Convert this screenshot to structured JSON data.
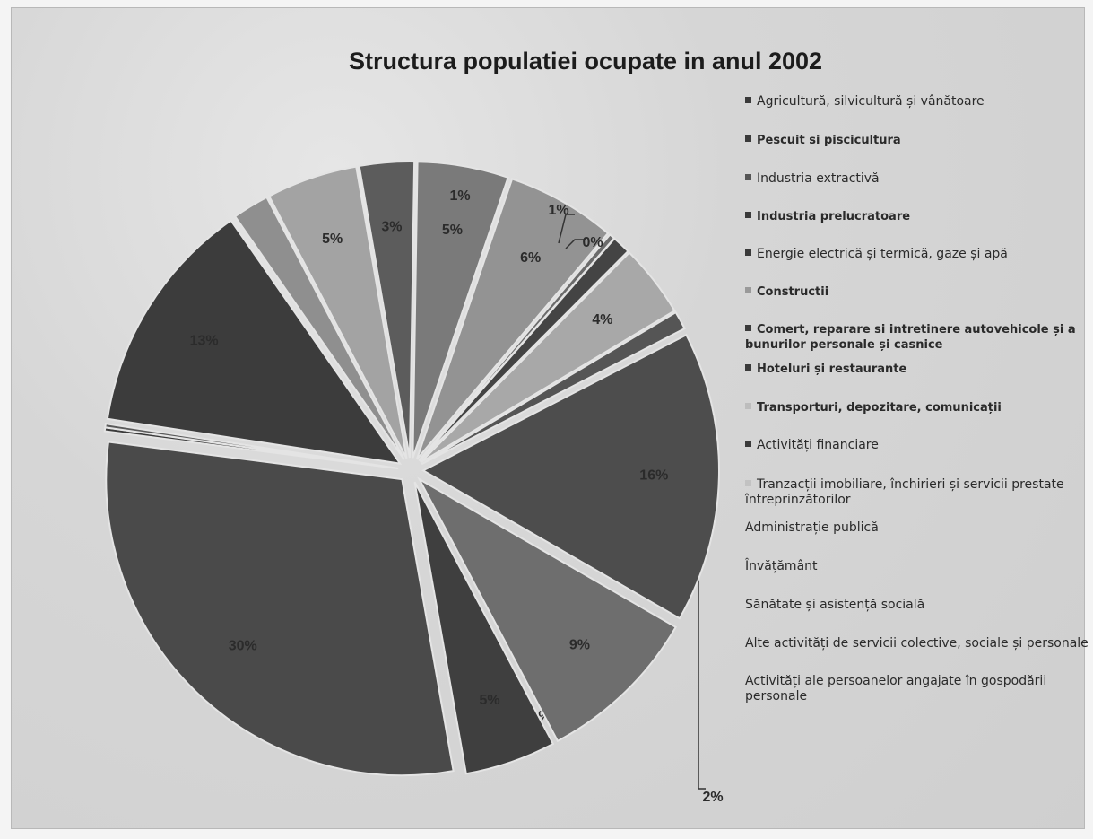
{
  "chart_data": {
    "type": "pie",
    "title": "Structura populatiei ocupate in anul 2002",
    "slices": [
      {
        "label": "Agricultură, silvicultură și vânătoare",
        "value": 30,
        "display": "30%",
        "color": "#4a4a4a"
      },
      {
        "label": "Pescuit și piscicultura",
        "value": 0.2,
        "display": "0%",
        "color": "#3a3a3a"
      },
      {
        "label": "Industria extractivă",
        "value": 0.2,
        "display": "0%",
        "color": "#5a5a5a"
      },
      {
        "label": "Industria prelucratoare",
        "value": 13,
        "display": "13%",
        "color": "#3c3c3c"
      },
      {
        "label": "Energie electrică și termică, gaze și apă",
        "value": 2,
        "display": "2%",
        "color": "#8f8f8f"
      },
      {
        "label": "Constructii",
        "value": 5,
        "display": "5%",
        "color": "#a3a3a3"
      },
      {
        "label": "Comert, reparare si intretinere autovehicole și a bunurilor personale și casnice",
        "value": 3,
        "display": "3%",
        "color": "#5c5c5c"
      },
      {
        "label": "Hoteluri și restaurante",
        "value": 5,
        "display": "5%",
        "color": "#7a7a7a"
      },
      {
        "label": "Transporturi, depozitare, comunicații",
        "value": 6,
        "display": "6%",
        "color": "#939393"
      },
      {
        "label": "Activități financiare",
        "value": 0.3,
        "display": "0%",
        "color": "#6b6b6b"
      },
      {
        "label": "Tranzacții imobiliare, închirieri și servicii prestate întreprinzătorilor",
        "value": 1,
        "display": "1%",
        "color": "#444444"
      },
      {
        "label": "Administrație publică",
        "value": 4,
        "display": "4%",
        "color": "#a8a8a8"
      },
      {
        "label": "Învățământ",
        "value": 1,
        "display": "1%",
        "color": "#555555"
      },
      {
        "label": "Sănătate și asistență socială",
        "value": 16,
        "display": "16%",
        "color": "#4d4d4d"
      },
      {
        "label": "Alte activități de servicii colective, sociale și personale",
        "value": 9,
        "display": "9%",
        "color": "#6e6e6e"
      },
      {
        "label": "Activități ale persoanelor angajate în gospodării personale",
        "value": 5,
        "display": "5%",
        "color": "#3f3f3f"
      }
    ]
  },
  "legend": [
    {
      "text": "Agricultură, silvicultură și vânătoare",
      "bold": false,
      "marker_color": "#3a3a3a"
    },
    {
      "text": "Pescuit si piscicultura",
      "bold": true,
      "marker_color": "#3a3a3a"
    },
    {
      "text": "Industria extractivă",
      "bold": false,
      "marker_color": "#555555"
    },
    {
      "text": "Industria prelucratoare",
      "bold": true,
      "marker_color": "#3a3a3a"
    },
    {
      "text": "Energie electrică și termică, gaze și apă",
      "bold": false,
      "marker_color": "#3a3a3a"
    },
    {
      "text": "Constructii",
      "bold": true,
      "marker_color": "#9a9a9a"
    },
    {
      "text": "Comert, reparare si intretinere autovehicole și a bunurilor personale și casnice",
      "bold": true,
      "marker_color": "#3a3a3a"
    },
    {
      "text": "Hoteluri și restaurante",
      "bold": true,
      "marker_color": "#3a3a3a"
    },
    {
      "text": "Transporturi, depozitare, comunicații",
      "bold": true,
      "marker_color": "#bdbdbd"
    },
    {
      "text": "Activități financiare",
      "bold": false,
      "marker_color": "#3a3a3a"
    },
    {
      "text": "Tranzacții imobiliare, închirieri și servicii prestate întreprinzătorilor",
      "bold": false,
      "marker_color": "#c2c2c2"
    },
    {
      "text": "Administrație publică",
      "bold": false,
      "marker_color": "none"
    },
    {
      "text": "Învățământ",
      "bold": false,
      "marker_color": "none"
    },
    {
      "text": "Sănătate și asistență socială",
      "bold": false,
      "marker_color": "none"
    },
    {
      "text": "Alte activități de servicii colective, sociale și personale",
      "bold": false,
      "marker_color": "none"
    },
    {
      "text": "Activități ale persoanelor angajate în gospodării personale",
      "bold": false,
      "marker_color": "none"
    }
  ]
}
